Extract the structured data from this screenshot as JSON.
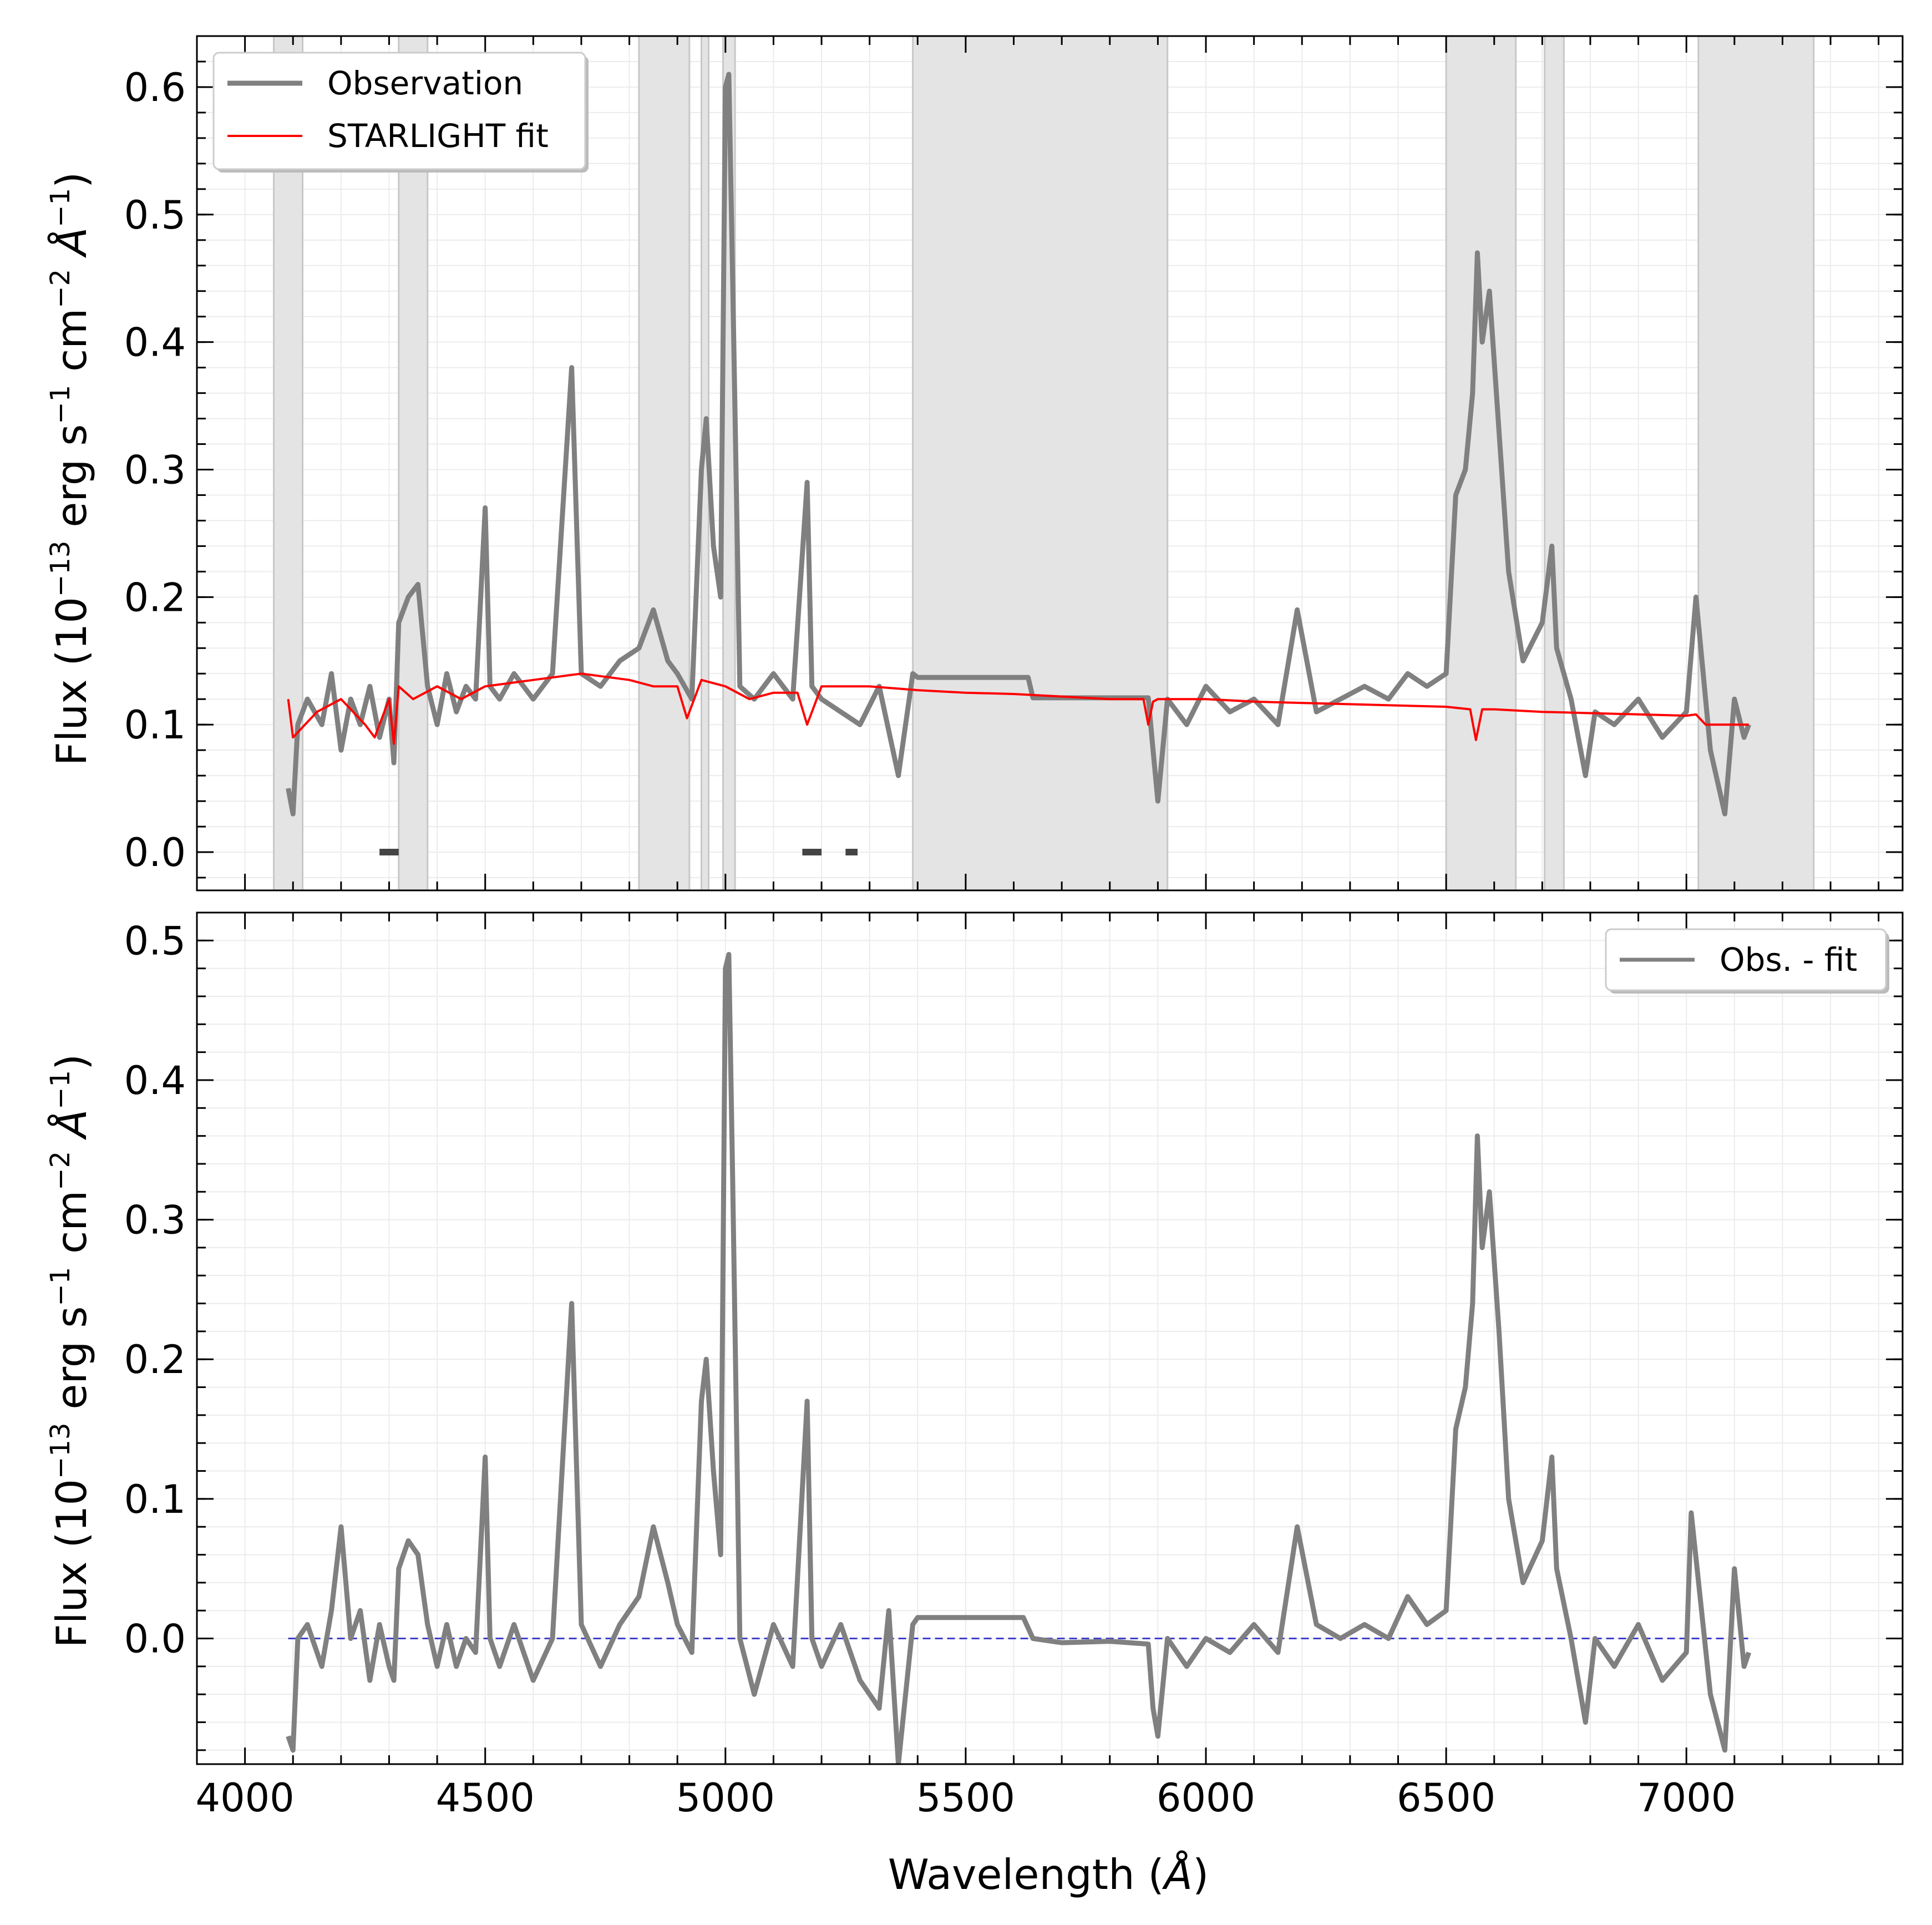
{
  "figure": {
    "xlabel_text": "Wavelength (",
    "xlabel_unit": "Å",
    "xlabel_close": ")",
    "ylabel_prefix": "Flux (10",
    "ylabel_exp": "−13",
    "ylabel_mid1": " erg s",
    "ylabel_exp2": "−1",
    "ylabel_mid2": " cm",
    "ylabel_exp3": "−2",
    "ylabel_unit": " Å",
    "ylabel_exp4": "−1",
    "ylabel_close": ")"
  },
  "chart_data": [
    {
      "type": "line",
      "panel": "top",
      "title": "",
      "xlabel": "",
      "ylabel": "Flux (10^-13 erg s^-1 cm^-2 Å^-1)",
      "xlim": [
        3900,
        7450
      ],
      "ylim": [
        -0.03,
        0.64
      ],
      "xticks": [
        4000,
        4500,
        5000,
        5500,
        6000,
        6500,
        7000
      ],
      "yticks": [
        0.0,
        0.1,
        0.2,
        0.3,
        0.4,
        0.5,
        0.6
      ],
      "ytick_labels": [
        "0.0",
        "0.1",
        "0.2",
        "0.3",
        "0.4",
        "0.5",
        "0.6"
      ],
      "grid": true,
      "legend_position": "top-left",
      "masked_regions": [
        [
          4060,
          4120
        ],
        [
          4320,
          4380
        ],
        [
          4820,
          4925
        ],
        [
          4950,
          4965
        ],
        [
          4995,
          5020
        ],
        [
          5390,
          5920
        ],
        [
          6500,
          6645
        ],
        [
          6705,
          6745
        ],
        [
          7025,
          7265
        ]
      ],
      "flagged_segments": [
        [
          4280,
          4320
        ],
        [
          5160,
          5200
        ],
        [
          5250,
          5275
        ]
      ],
      "series": [
        {
          "name": "Observation",
          "color": "#808080",
          "x": [
            4090,
            4100,
            4110,
            4130,
            4160,
            4180,
            4200,
            4220,
            4240,
            4260,
            4280,
            4300,
            4310,
            4320,
            4340,
            4360,
            4380,
            4400,
            4420,
            4440,
            4460,
            4480,
            4500,
            4510,
            4530,
            4560,
            4600,
            4640,
            4680,
            4700,
            4740,
            4780,
            4820,
            4850,
            4880,
            4900,
            4930,
            4950,
            4960,
            4975,
            4990,
            5000,
            5007,
            5015,
            5030,
            5060,
            5100,
            5140,
            5170,
            5180,
            5200,
            5240,
            5280,
            5320,
            5360,
            5390,
            5400,
            5630,
            5640,
            5880,
            5890,
            5900,
            5920,
            5960,
            6000,
            6050,
            6100,
            6150,
            6190,
            6230,
            6280,
            6330,
            6380,
            6420,
            6460,
            6500,
            6520,
            6540,
            6555,
            6565,
            6575,
            6590,
            6610,
            6630,
            6660,
            6700,
            6720,
            6730,
            6760,
            6790,
            6810,
            6850,
            6900,
            6950,
            7000,
            7020,
            7050,
            7080,
            7100,
            7120,
            7130
          ],
          "y": [
            0.05,
            0.03,
            0.1,
            0.12,
            0.1,
            0.14,
            0.08,
            0.12,
            0.1,
            0.13,
            0.09,
            0.12,
            0.07,
            0.18,
            0.2,
            0.21,
            0.13,
            0.1,
            0.14,
            0.11,
            0.13,
            0.12,
            0.27,
            0.13,
            0.12,
            0.14,
            0.12,
            0.14,
            0.38,
            0.14,
            0.13,
            0.15,
            0.16,
            0.19,
            0.15,
            0.14,
            0.12,
            0.3,
            0.34,
            0.24,
            0.2,
            0.6,
            0.61,
            0.45,
            0.13,
            0.12,
            0.14,
            0.12,
            0.29,
            0.13,
            0.12,
            0.11,
            0.1,
            0.13,
            0.06,
            0.14,
            0.137,
            0.137,
            0.121,
            0.121,
            0.08,
            0.04,
            0.12,
            0.1,
            0.13,
            0.11,
            0.12,
            0.1,
            0.19,
            0.11,
            0.12,
            0.13,
            0.12,
            0.14,
            0.13,
            0.14,
            0.28,
            0.3,
            0.36,
            0.47,
            0.4,
            0.44,
            0.33,
            0.22,
            0.15,
            0.18,
            0.24,
            0.16,
            0.12,
            0.06,
            0.11,
            0.1,
            0.12,
            0.09,
            0.11,
            0.2,
            0.08,
            0.03,
            0.12,
            0.09,
            0.1
          ]
        },
        {
          "name": "STARLIGHT fit",
          "color": "#ff0000",
          "x": [
            4090,
            4100,
            4150,
            4200,
            4250,
            4270,
            4300,
            4310,
            4320,
            4350,
            4400,
            4450,
            4500,
            4600,
            4700,
            4800,
            4850,
            4900,
            4920,
            4950,
            5000,
            5050,
            5100,
            5150,
            5170,
            5200,
            5300,
            5400,
            5500,
            5600,
            5700,
            5800,
            5870,
            5880,
            5890,
            5900,
            6000,
            6100,
            6200,
            6300,
            6400,
            6500,
            6550,
            6562,
            6575,
            6600,
            6700,
            6800,
            6900,
            7000,
            7020,
            7040,
            7100,
            7130
          ],
          "y": [
            0.12,
            0.09,
            0.11,
            0.12,
            0.1,
            0.09,
            0.12,
            0.085,
            0.13,
            0.12,
            0.13,
            0.12,
            0.13,
            0.135,
            0.14,
            0.135,
            0.13,
            0.13,
            0.105,
            0.135,
            0.13,
            0.12,
            0.125,
            0.125,
            0.1,
            0.13,
            0.13,
            0.127,
            0.125,
            0.124,
            0.122,
            0.12,
            0.12,
            0.1,
            0.118,
            0.12,
            0.12,
            0.118,
            0.117,
            0.116,
            0.115,
            0.114,
            0.112,
            0.088,
            0.112,
            0.112,
            0.11,
            0.109,
            0.108,
            0.107,
            0.108,
            0.1,
            0.1,
            0.1
          ]
        }
      ]
    },
    {
      "type": "line",
      "panel": "bottom",
      "title": "",
      "xlabel": "Wavelength (Å)",
      "ylabel": "Flux (10^-13 erg s^-1 cm^-2 Å^-1)",
      "xlim": [
        3900,
        7450
      ],
      "ylim": [
        -0.09,
        0.52
      ],
      "xticks": [
        4000,
        4500,
        5000,
        5500,
        6000,
        6500,
        7000
      ],
      "xtick_labels": [
        "4000",
        "4500",
        "5000",
        "5500",
        "6000",
        "6500",
        "7000"
      ],
      "yticks": [
        0.0,
        0.1,
        0.2,
        0.3,
        0.4,
        0.5
      ],
      "ytick_labels": [
        "0.0",
        "0.1",
        "0.2",
        "0.3",
        "0.4",
        "0.5"
      ],
      "grid": true,
      "legend_position": "top-right",
      "zero_line": {
        "y": 0.0,
        "color": "#4040cc",
        "style": "dashed"
      },
      "series": [
        {
          "name": "Obs. - fit",
          "color": "#808080",
          "x": [
            4090,
            4100,
            4110,
            4130,
            4160,
            4180,
            4200,
            4220,
            4240,
            4260,
            4280,
            4300,
            4310,
            4320,
            4340,
            4360,
            4380,
            4400,
            4420,
            4440,
            4460,
            4480,
            4500,
            4510,
            4530,
            4560,
            4600,
            4640,
            4680,
            4700,
            4740,
            4780,
            4820,
            4850,
            4880,
            4900,
            4930,
            4950,
            4960,
            4975,
            4990,
            5000,
            5007,
            5015,
            5030,
            5060,
            5100,
            5140,
            5170,
            5180,
            5200,
            5240,
            5280,
            5320,
            5340,
            5360,
            5390,
            5400,
            5620,
            5640,
            5700,
            5800,
            5880,
            5890,
            5900,
            5920,
            5960,
            6000,
            6050,
            6100,
            6150,
            6190,
            6230,
            6280,
            6330,
            6380,
            6420,
            6460,
            6500,
            6520,
            6540,
            6555,
            6565,
            6575,
            6590,
            6610,
            6630,
            6660,
            6700,
            6720,
            6730,
            6760,
            6790,
            6810,
            6850,
            6900,
            6950,
            7000,
            7010,
            7050,
            7080,
            7100,
            7120,
            7130
          ],
          "y": [
            -0.07,
            -0.08,
            0.0,
            0.01,
            -0.02,
            0.02,
            0.08,
            0.0,
            0.02,
            -0.03,
            0.01,
            -0.02,
            -0.03,
            0.05,
            0.07,
            0.06,
            0.01,
            -0.02,
            0.01,
            -0.02,
            0.0,
            -0.01,
            0.13,
            0.0,
            -0.02,
            0.01,
            -0.03,
            0.0,
            0.24,
            0.01,
            -0.02,
            0.01,
            0.03,
            0.08,
            0.04,
            0.01,
            -0.01,
            0.17,
            0.2,
            0.12,
            0.06,
            0.48,
            0.49,
            0.33,
            0.0,
            -0.04,
            0.01,
            -0.02,
            0.17,
            0.0,
            -0.02,
            0.01,
            -0.03,
            -0.05,
            0.02,
            -0.09,
            0.01,
            0.015,
            0.015,
            0.0,
            -0.003,
            -0.002,
            -0.004,
            -0.05,
            -0.07,
            0.0,
            -0.02,
            0.0,
            -0.01,
            0.01,
            -0.01,
            0.08,
            0.01,
            0.0,
            0.01,
            0.0,
            0.03,
            0.01,
            0.02,
            0.15,
            0.18,
            0.24,
            0.36,
            0.28,
            0.32,
            0.22,
            0.1,
            0.04,
            0.07,
            0.13,
            0.05,
            0.0,
            -0.06,
            0.0,
            -0.02,
            0.01,
            -0.03,
            -0.01,
            0.09,
            -0.04,
            -0.08,
            0.05,
            -0.02,
            -0.01
          ]
        }
      ]
    }
  ]
}
